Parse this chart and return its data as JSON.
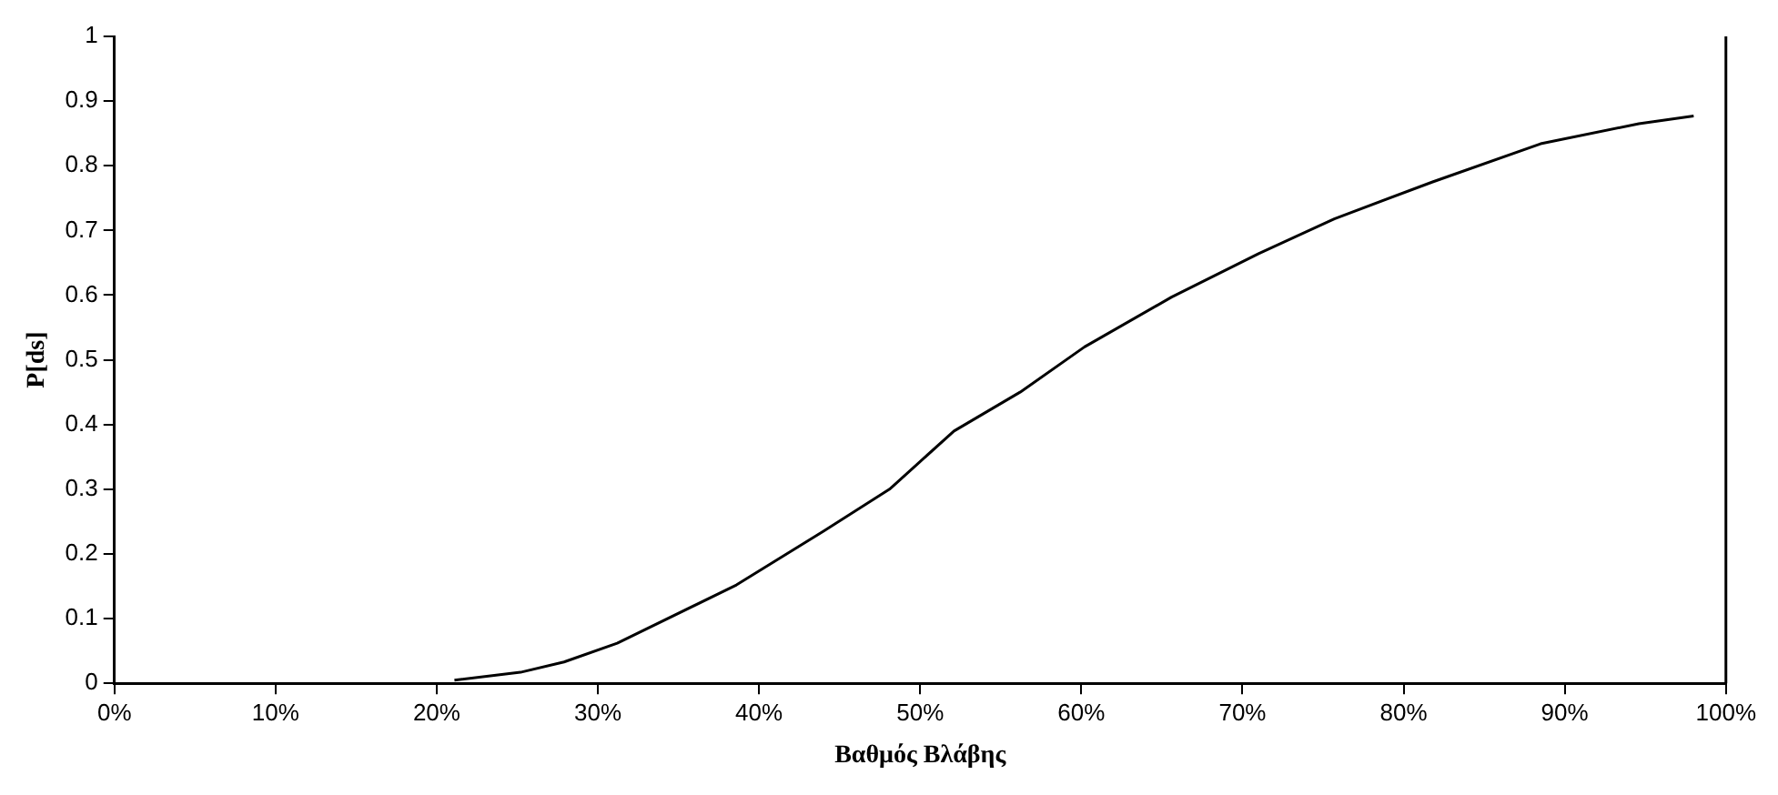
{
  "chart_data": {
    "type": "line",
    "xlabel": "Βαθμός Βλάβης",
    "ylabel": "P[ds]",
    "x": [
      21.1,
      25.2,
      27.9,
      31.2,
      38.6,
      44,
      48.1,
      52.1,
      56.2,
      60.2,
      65.6,
      71,
      75.7,
      81.8,
      88.5,
      94.6,
      98
    ],
    "series": [
      {
        "color": "#000000",
        "values": [
          0.005,
          0.017,
          0.033,
          0.062,
          0.152,
          0.235,
          0.3,
          0.39,
          0.45,
          0.52,
          0.597,
          0.664,
          0.718,
          0.775,
          0.834,
          0.865,
          0.877
        ]
      }
    ],
    "xlim": [
      0,
      100
    ],
    "xticks": [
      {
        "value": 0,
        "label": "0%"
      },
      {
        "value": 10,
        "label": "10%"
      },
      {
        "value": 20,
        "label": "20%"
      },
      {
        "value": 30,
        "label": "30%"
      },
      {
        "value": 40,
        "label": "40%"
      },
      {
        "value": 50,
        "label": "50%"
      },
      {
        "value": 60,
        "label": "60%"
      },
      {
        "value": 70,
        "label": "70%"
      },
      {
        "value": 80,
        "label": "80%"
      },
      {
        "value": 90,
        "label": "90%"
      },
      {
        "value": 100,
        "label": "100%"
      }
    ],
    "ylim": [
      0,
      1
    ],
    "yticks": [
      0,
      0.1,
      0.2,
      0.3,
      0.4,
      0.5,
      0.6,
      0.7,
      0.8,
      0.9,
      1
    ],
    "ref_lines": [
      {
        "axis": "x",
        "value": 100,
        "color": "#000000"
      }
    ],
    "grid": false,
    "legend": false,
    "marker": "none",
    "line_style": "solid"
  }
}
